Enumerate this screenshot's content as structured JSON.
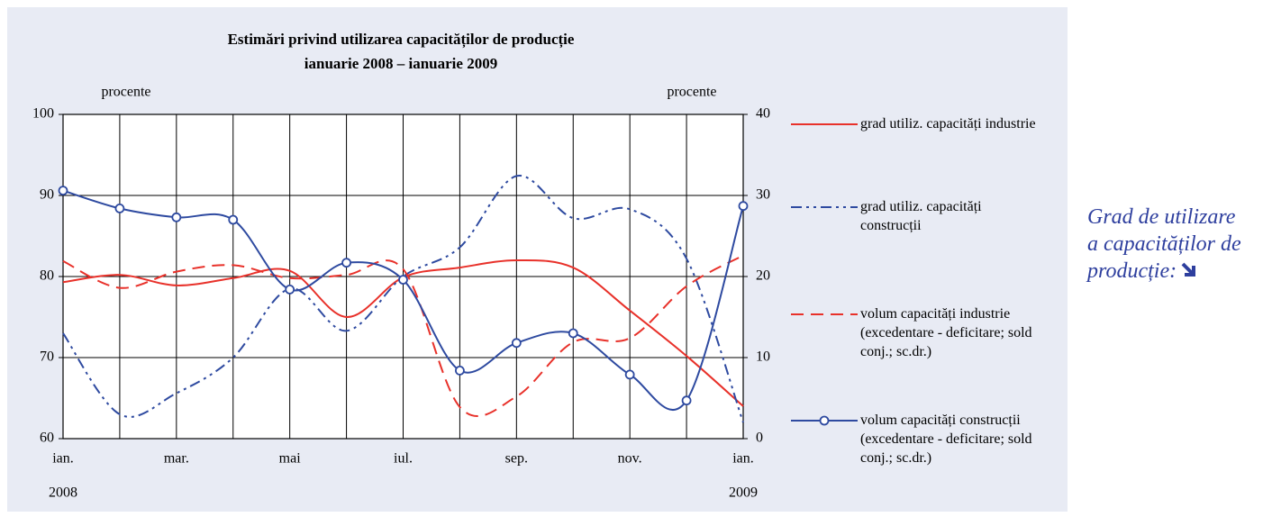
{
  "chart_data": {
    "type": "line",
    "title": "Estimări privind utilizarea capacităților de producție",
    "subtitle": "ianuarie 2008 – ianuarie 2009",
    "ylabel": "procente",
    "y2label": "procente",
    "categories": [
      "ian.",
      null,
      "mar.",
      null,
      "mai",
      null,
      "iul.",
      null,
      "sep.",
      null,
      "nov.",
      null,
      "ian."
    ],
    "category_years": [
      "2008",
      null,
      null,
      null,
      null,
      null,
      null,
      null,
      null,
      null,
      null,
      null,
      "2009"
    ],
    "ylim": [
      60,
      100
    ],
    "yticks": [
      60,
      70,
      80,
      90,
      100
    ],
    "y2lim": [
      0,
      40
    ],
    "y2ticks": [
      0,
      10,
      20,
      30,
      40
    ],
    "grid": true,
    "series": [
      {
        "name": "grad utiliz. capacități industrie",
        "color": "#e8312a",
        "style": "solid",
        "axis": "y",
        "values": [
          79.3,
          80.2,
          78.9,
          79.8,
          80.7,
          75.0,
          79.9,
          81.1,
          82.0,
          81.1,
          75.8,
          70.2,
          64.0
        ]
      },
      {
        "name": "grad utiliz. capacități construcții",
        "color": "#2e4aa0",
        "style": "dashdot",
        "axis": "y",
        "values": [
          73.0,
          63.0,
          65.6,
          70.0,
          78.5,
          73.3,
          80.0,
          83.6,
          92.4,
          87.2,
          88.3,
          82.2,
          62.0
        ]
      },
      {
        "name": "volum capacități industrie (excedentare - deficitare; sold conj.; sc.dr.)",
        "color": "#e8312a",
        "style": "dashed",
        "axis": "y2",
        "values": [
          21.9,
          18.6,
          20.6,
          21.4,
          19.8,
          20.2,
          20.9,
          3.9,
          5.2,
          11.9,
          12.4,
          18.8,
          22.6
        ]
      },
      {
        "name": "volum capacități construcții (excedentare - deficitare; sold conj.; sc.dr.)",
        "color": "#2e4aa0",
        "style": "markers",
        "axis": "y2",
        "values": [
          30.6,
          28.4,
          27.3,
          27.0,
          18.4,
          21.7,
          19.6,
          8.4,
          11.8,
          13.0,
          7.9,
          4.7,
          28.7
        ]
      }
    ]
  },
  "sidebar_title": "Grad de utilizare a capacităților de producție:"
}
